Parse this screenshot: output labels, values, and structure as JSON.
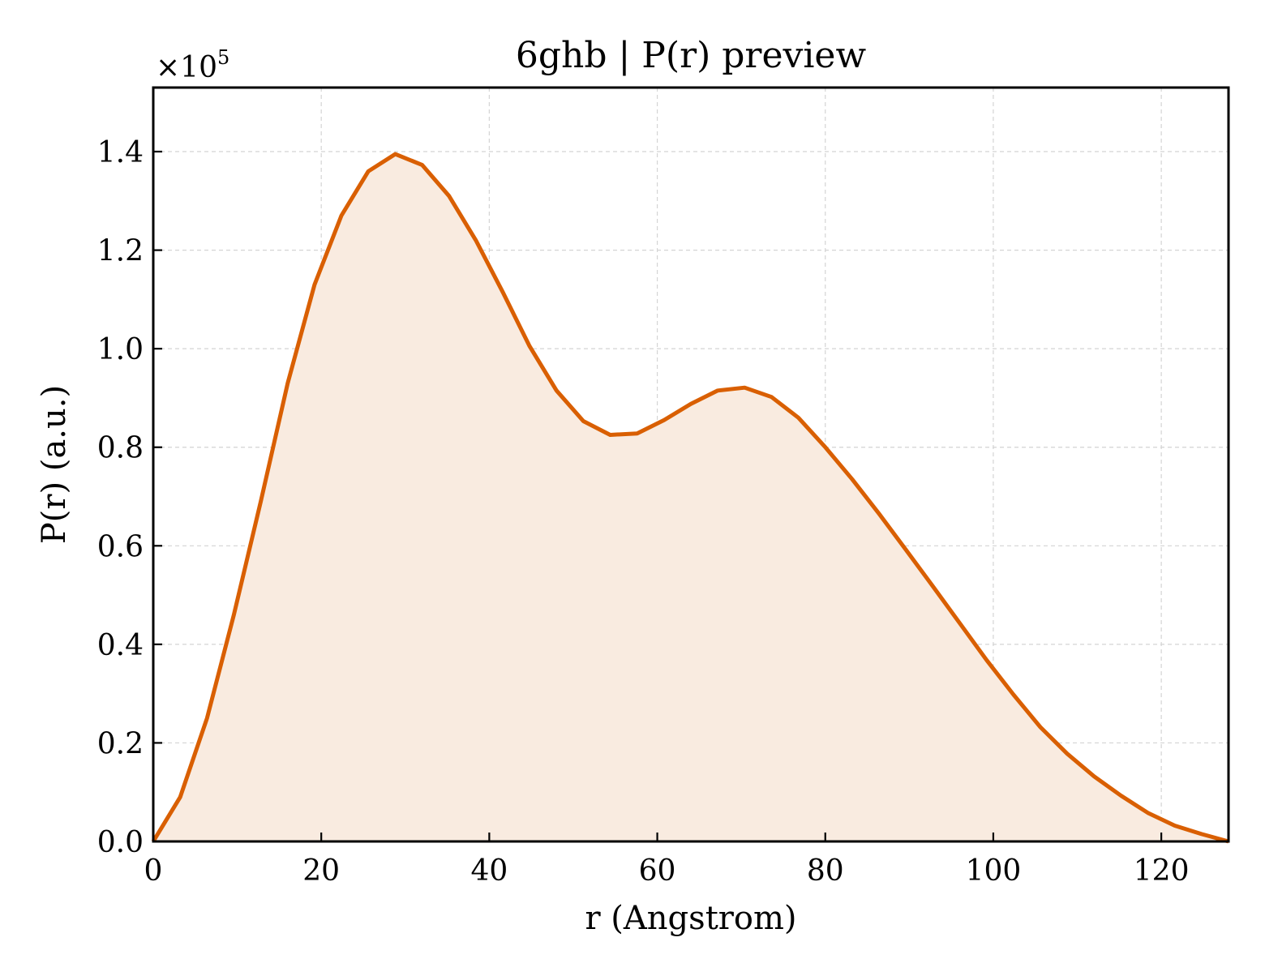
{
  "chart_data": {
    "type": "area",
    "title": "6ghb | P(r) preview",
    "xlabel": "r (Angstrom)",
    "ylabel": "P(r) (a.u.)",
    "y_multiplier_label": "×10",
    "y_multiplier_exponent": "5",
    "xlim": [
      0,
      128
    ],
    "ylim": [
      0,
      1.53
    ],
    "y_scale": 100000,
    "x_ticks": [
      0,
      20,
      40,
      60,
      80,
      100,
      120
    ],
    "x_tick_labels": [
      "0",
      "20",
      "40",
      "60",
      "80",
      "100",
      "120"
    ],
    "y_ticks": [
      0,
      0.2,
      0.4,
      0.6,
      0.8,
      1.0,
      1.2,
      1.4
    ],
    "y_tick_labels": [
      "0.0",
      "0.2",
      "0.4",
      "0.6",
      "0.8",
      "1.0",
      "1.2",
      "1.4"
    ],
    "grid": true,
    "line_color": "#d95f02",
    "fill_color": "#f9ebe0",
    "series": [
      {
        "x": [
          0,
          3.2,
          6.4,
          9.6,
          12.8,
          16.0,
          19.2,
          22.4,
          25.6,
          28.8,
          32.0,
          35.2,
          38.4,
          41.6,
          44.8,
          48.0,
          51.2,
          54.4,
          57.6,
          60.8,
          64.0,
          67.2,
          70.4,
          73.6,
          76.8,
          80.0,
          83.2,
          86.4,
          89.6,
          92.8,
          96.0,
          99.2,
          102.4,
          105.6,
          108.8,
          112.0,
          115.2,
          118.4,
          121.6,
          124.8,
          128.0
        ],
        "y": [
          0.0,
          0.09,
          0.25,
          0.46,
          0.69,
          0.93,
          1.13,
          1.27,
          1.36,
          1.395,
          1.373,
          1.31,
          1.22,
          1.115,
          1.005,
          0.915,
          0.853,
          0.825,
          0.828,
          0.855,
          0.888,
          0.915,
          0.921,
          0.902,
          0.86,
          0.8,
          0.735,
          0.665,
          0.592,
          0.518,
          0.443,
          0.368,
          0.298,
          0.232,
          0.178,
          0.132,
          0.093,
          0.058,
          0.032,
          0.015,
          0.0
        ]
      }
    ]
  }
}
